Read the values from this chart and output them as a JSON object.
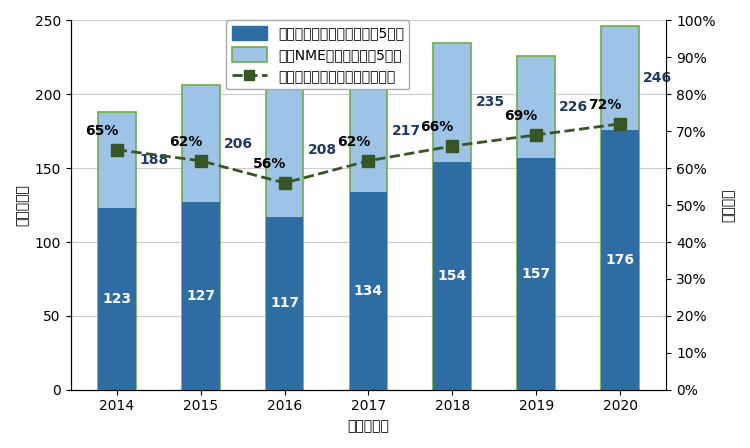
{
  "years": [
    2014,
    2015,
    2016,
    2017,
    2018,
    2019,
    2020
  ],
  "dark_blue_values": [
    123,
    127,
    117,
    134,
    154,
    157,
    176
  ],
  "light_blue_values": [
    188,
    206,
    208,
    217,
    235,
    226,
    246
  ],
  "percentages": [
    0.65,
    0.62,
    0.56,
    0.62,
    0.66,
    0.69,
    0.72
  ],
  "percentage_labels": [
    "65%",
    "62%",
    "56%",
    "62%",
    "66%",
    "69%",
    "72%"
  ],
  "dark_blue_color": "#2E6DA4",
  "light_blue_color": "#9DC3E6",
  "light_blue_edge_color": "#70AD47",
  "line_color": "#375623",
  "marker_color": "#375623",
  "ylim_left": [
    0,
    250
  ],
  "ylim_right": [
    0,
    1.0
  ],
  "yticks_left": [
    0,
    50,
    100,
    150,
    200,
    250
  ],
  "yticks_right": [
    0.0,
    0.1,
    0.2,
    0.3,
    0.4,
    0.5,
    0.6,
    0.7,
    0.8,
    0.9,
    1.0
  ],
  "ytick_right_labels": [
    "0%",
    "10%",
    "20%",
    "30%",
    "40%",
    "50%",
    "60%",
    "70%",
    "80%",
    "90%",
    "100%"
  ],
  "xlabel": "（調査年）",
  "ylabel_left": "（品目数）",
  "ylabel_right": "（割合）",
  "legend_label_dark": "国内未承認薬合計　（直近5年）",
  "legend_label_light": "欧米NME合計　（直近5年）",
  "legend_label_line": "国内未承認薬の割合　（右軸）",
  "bar_width": 0.45,
  "background_color": "#ffffff",
  "tick_fontsize": 10,
  "label_fontsize": 10,
  "bar_label_fontsize": 10,
  "legend_fontsize": 10,
  "pct_label_fontsize": 10
}
